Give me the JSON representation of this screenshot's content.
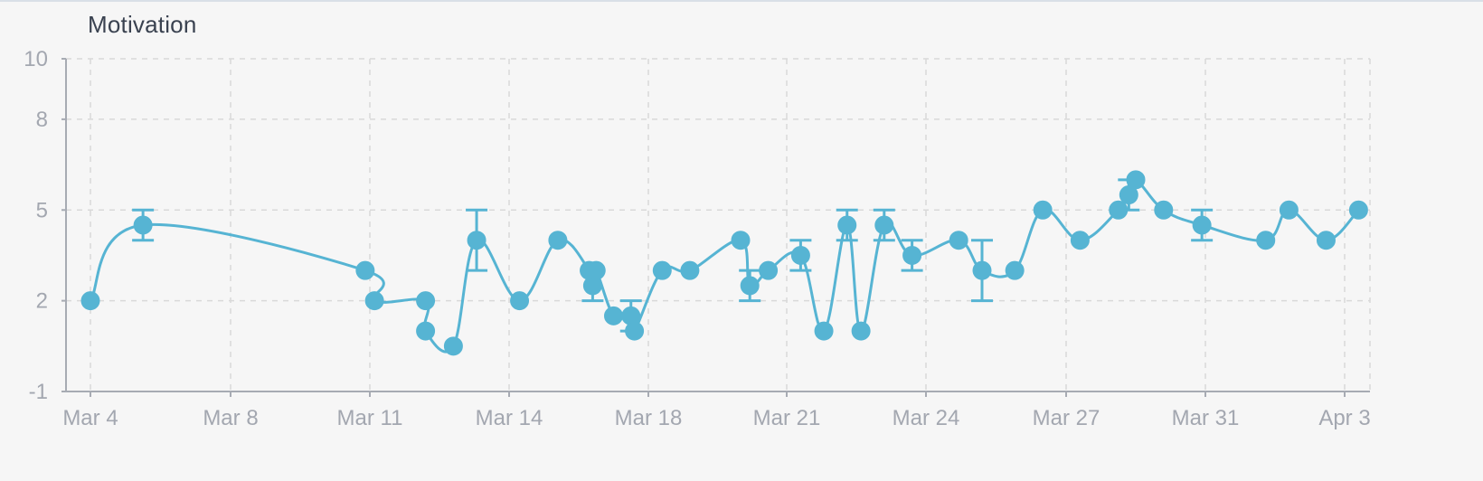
{
  "chart_data": {
    "type": "line",
    "title": "Motivation",
    "xlabel": "",
    "ylabel": "",
    "ylim": [
      -1,
      10
    ],
    "y_ticks": [
      {
        "value": 10,
        "label": "10"
      },
      {
        "value": 8,
        "label": "8"
      },
      {
        "value": 5,
        "label": "5"
      },
      {
        "value": 2,
        "label": "2"
      },
      {
        "value": -1,
        "label": "-1"
      }
    ],
    "x_ticks": [
      "Mar 4",
      "Mar 8",
      "Mar 11",
      "Mar 14",
      "Mar 18",
      "Mar 21",
      "Mar 24",
      "Mar 27",
      "Mar 31",
      "Apr 3"
    ],
    "grid": true,
    "series": [
      {
        "color": "#56b4d3",
        "points": [
          {
            "x": "Mar 4",
            "y": 2
          },
          {
            "x": "Mar 5.5",
            "y": 4.5,
            "err": [
              4,
              5
            ]
          },
          {
            "x": "Mar 10.9",
            "y": 3
          },
          {
            "x": "Mar 11.1",
            "y": 2
          },
          {
            "x": "Mar 12.2",
            "y": 2
          },
          {
            "x": "Mar 12.2",
            "y": 1
          },
          {
            "x": "Mar 12.8",
            "y": 0.5
          },
          {
            "x": "Mar 13.3",
            "y": 4,
            "err": [
              3,
              5
            ]
          },
          {
            "x": "Mar 14.3",
            "y": 2
          },
          {
            "x": "Mar 15.4",
            "y": 4
          },
          {
            "x": "Mar 16.3",
            "y": 3
          },
          {
            "x": "Mar 16.4",
            "y": 2.5,
            "err": [
              2,
              3
            ]
          },
          {
            "x": "Mar 16.5",
            "y": 3
          },
          {
            "x": "Mar 17.0",
            "y": 1.5
          },
          {
            "x": "Mar 17.5",
            "y": 1.5,
            "err": [
              1,
              2
            ]
          },
          {
            "x": "Mar 17.6",
            "y": 1
          },
          {
            "x": "Mar 18.3",
            "y": 3
          },
          {
            "x": "Mar 18.9",
            "y": 3
          },
          {
            "x": "Mar 20.0",
            "y": 4
          },
          {
            "x": "Mar 20.2",
            "y": 2.5,
            "err": [
              2,
              3
            ]
          },
          {
            "x": "Mar 20.6",
            "y": 3
          },
          {
            "x": "Mar 21.3",
            "y": 3.5,
            "err": [
              3,
              4
            ]
          },
          {
            "x": "Mar 21.8",
            "y": 1
          },
          {
            "x": "Mar 22.3",
            "y": 4.5,
            "err": [
              4,
              5
            ]
          },
          {
            "x": "Mar 22.6",
            "y": 1
          },
          {
            "x": "Mar 23.1",
            "y": 4.5,
            "err": [
              4,
              5
            ]
          },
          {
            "x": "Mar 23.7",
            "y": 3.5,
            "err": [
              3,
              4
            ]
          },
          {
            "x": "Mar 24.7",
            "y": 4
          },
          {
            "x": "Mar 25.2",
            "y": 3,
            "err": [
              2,
              4
            ]
          },
          {
            "x": "Mar 25.9",
            "y": 3
          },
          {
            "x": "Mar 26.5",
            "y": 5
          },
          {
            "x": "Mar 27.4",
            "y": 4
          },
          {
            "x": "Mar 28.5",
            "y": 5
          },
          {
            "x": "Mar 28.8",
            "y": 5.5,
            "err": [
              5,
              6
            ]
          },
          {
            "x": "Mar 29.0",
            "y": 6
          },
          {
            "x": "Mar 29.8",
            "y": 5
          },
          {
            "x": "Mar 30.9",
            "y": 4.5,
            "err": [
              4,
              5
            ]
          },
          {
            "x": "Apr 1.3",
            "y": 4
          },
          {
            "x": "Apr 1.8",
            "y": 5
          },
          {
            "x": "Apr 2.6",
            "y": 4
          },
          {
            "x": "Apr 3.3",
            "y": 5
          }
        ]
      }
    ]
  }
}
